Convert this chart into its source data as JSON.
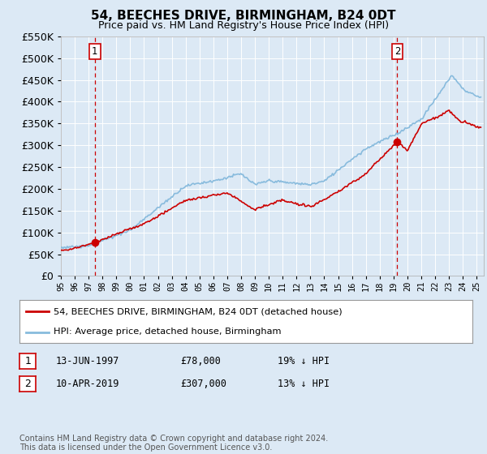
{
  "title": "54, BEECHES DRIVE, BIRMINGHAM, B24 0DT",
  "subtitle": "Price paid vs. HM Land Registry's House Price Index (HPI)",
  "background_color": "#dce9f5",
  "plot_bg_color": "#dce9f5",
  "hpi_color": "#88bbdd",
  "price_color": "#cc0000",
  "marker_color": "#cc0000",
  "dashed_line_color": "#cc0000",
  "grid_color": "#ffffff",
  "ylim": [
    0,
    550000
  ],
  "yticks": [
    0,
    50000,
    100000,
    150000,
    200000,
    250000,
    300000,
    350000,
    400000,
    450000,
    500000,
    550000
  ],
  "sale1_year": 1997.45,
  "sale1_price": 78000,
  "sale1_label": "1",
  "sale1_date": "13-JUN-1997",
  "sale1_price_str": "£78,000",
  "sale1_pct": "19% ↓ HPI",
  "sale2_year": 2019.27,
  "sale2_price": 307000,
  "sale2_label": "2",
  "sale2_date": "10-APR-2019",
  "sale2_price_str": "£307,000",
  "sale2_pct": "13% ↓ HPI",
  "legend_line1": "54, BEECHES DRIVE, BIRMINGHAM, B24 0DT (detached house)",
  "legend_line2": "HPI: Average price, detached house, Birmingham",
  "footer": "Contains HM Land Registry data © Crown copyright and database right 2024.\nThis data is licensed under the Open Government Licence v3.0."
}
